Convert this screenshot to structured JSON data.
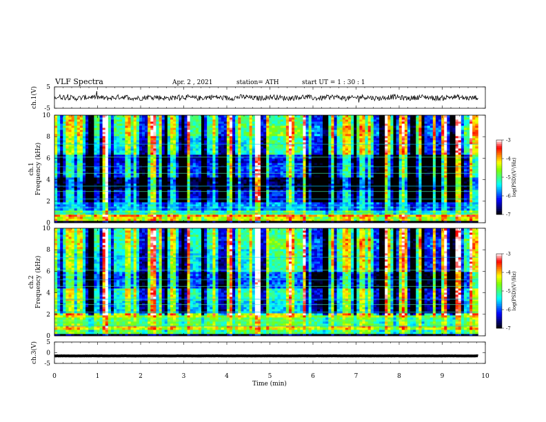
{
  "header": {
    "title": "VLF  Spectra",
    "date": "Apr. 2  , 2021",
    "station": "station= ATH",
    "start": "start  UT  =    1  : 30 : 1"
  },
  "chart_data": [
    {
      "type": "line",
      "name": "ch1-waveform",
      "ylabel": "ch.1(V)",
      "ylim": [
        -5,
        5
      ],
      "yticks": [
        "5",
        "-5"
      ],
      "x_range": [
        0,
        9.83
      ],
      "baseline": 0,
      "noise_amplitude": 1.2
    },
    {
      "type": "heatmap",
      "name": "ch1-spectrogram",
      "ylabel": "ch.1\nFrequency  (kHz)",
      "ylim": [
        0,
        10
      ],
      "yticks": [
        "0",
        "2",
        "4",
        "6",
        "8",
        "10"
      ],
      "x_range": [
        0,
        9.83
      ],
      "color_scale": {
        "label": "log(PSD)(V²/Hz)",
        "range": [
          -7,
          -3
        ],
        "ticks": [
          "-3",
          "-4",
          "-5",
          "-6",
          "-7"
        ]
      },
      "bands": [
        {
          "from": 0,
          "to": 0.2,
          "value": -7.0
        },
        {
          "from": 0.2,
          "to": 0.5,
          "value": -4.3
        },
        {
          "from": 0.5,
          "to": 0.8,
          "value": -3.8
        },
        {
          "from": 0.8,
          "to": 1.2,
          "value": -5.0
        },
        {
          "from": 1.2,
          "to": 2.0,
          "value": -5.7
        },
        {
          "from": 2.0,
          "to": 3.0,
          "value": -6.2
        },
        {
          "from": 3.0,
          "to": 4.2,
          "value": -6.8
        },
        {
          "from": 4.2,
          "to": 5.5,
          "value": -6.0
        },
        {
          "from": 5.5,
          "to": 6.3,
          "value": -6.3
        },
        {
          "from": 6.3,
          "to": 8.0,
          "value": -5.4
        },
        {
          "from": 8.0,
          "to": 10.0,
          "value": -5.0
        }
      ]
    },
    {
      "type": "heatmap",
      "name": "ch2-spectrogram",
      "ylabel": "ch.2\nFrequency  (kHz)",
      "ylim": [
        0,
        10
      ],
      "yticks": [
        "0",
        "2",
        "4",
        "6",
        "8",
        "10"
      ],
      "x_range": [
        0,
        9.83
      ],
      "color_scale": {
        "label": "log(PSD)(V²/Hz)",
        "range": [
          -7,
          -3
        ],
        "ticks": [
          "-3",
          "-4",
          "-5",
          "-6",
          "-7"
        ]
      },
      "bands": [
        {
          "from": 0,
          "to": 0.2,
          "value": -6.8
        },
        {
          "from": 0.2,
          "to": 0.6,
          "value": -4.9
        },
        {
          "from": 0.6,
          "to": 1.0,
          "value": -4.2
        },
        {
          "from": 1.0,
          "to": 1.7,
          "value": -4.8
        },
        {
          "from": 1.7,
          "to": 2.2,
          "value": -4.3
        },
        {
          "from": 2.2,
          "to": 3.2,
          "value": -5.5
        },
        {
          "from": 3.2,
          "to": 4.5,
          "value": -5.2
        },
        {
          "from": 4.5,
          "to": 6.0,
          "value": -5.9
        },
        {
          "from": 6.0,
          "to": 8.0,
          "value": -5.4
        },
        {
          "from": 8.0,
          "to": 10.0,
          "value": -5.1
        }
      ]
    },
    {
      "type": "line",
      "name": "ch3-waveform",
      "ylabel": "ch.3(V)",
      "ylim": [
        -5,
        5
      ],
      "yticks": [
        "5",
        "0",
        "-5"
      ],
      "x_range": [
        0,
        9.83
      ],
      "baseline": -1.5,
      "noise_amplitude": 0.05
    }
  ],
  "x_axis": {
    "xlabel": "Time  (min)",
    "xlim": [
      0,
      10
    ],
    "ticks": [
      "0",
      "1",
      "2",
      "3",
      "4",
      "5",
      "6",
      "7",
      "8",
      "9",
      "10"
    ]
  },
  "colors": {
    "scale": [
      "#000000",
      "#000080",
      "#0000ff",
      "#0080ff",
      "#00ffff",
      "#40ff80",
      "#80ff00",
      "#ffff00",
      "#ff8000",
      "#ff0000",
      "#ffffff"
    ],
    "waveform": "#000000"
  }
}
